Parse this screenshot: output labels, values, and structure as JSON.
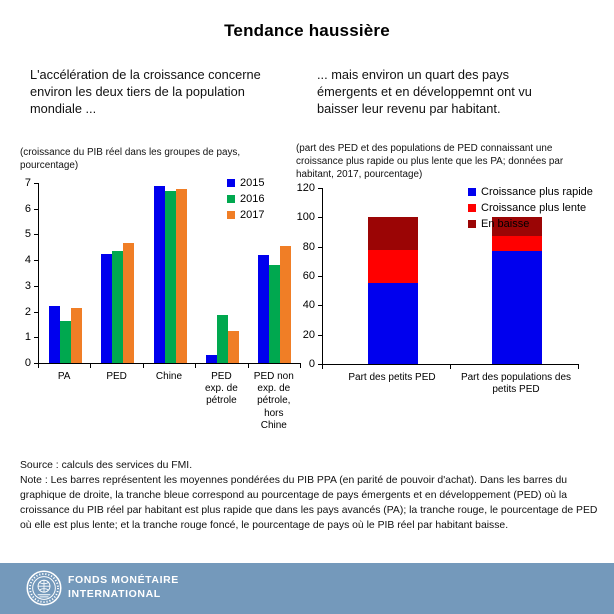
{
  "title": "Tendance haussière",
  "intro": {
    "left": "L'accélération de la croissance concerne environ les deux tiers de la population mondiale ...",
    "right": "... mais environ un quart des pays émergents et en développemnt ont vu baisser leur revenu par habitant."
  },
  "colors": {
    "blue": "#0000EE",
    "green": "#00A84F",
    "orange": "#F07E26",
    "red": "#FF0000",
    "dark_red": "#9B0505",
    "footer_band": "#7499BB"
  },
  "chart_data": [
    {
      "type": "bar",
      "title": "(croissance du PIB réel dans les groupes de pays, pourcentage)",
      "categories": [
        "PA",
        "PED",
        "Chine",
        "PED exp. de pétrole",
        "PED non exp. de pétrole, hors Chine"
      ],
      "tick_labels": [
        [
          "PA"
        ],
        [
          "PED"
        ],
        [
          "Chine"
        ],
        [
          "PED",
          "exp. de",
          "pétrole"
        ],
        [
          "PED non",
          "exp. de",
          "pétrole,",
          "hors",
          "Chine"
        ]
      ],
      "series": [
        {
          "name": "2015",
          "color": "#0000EE",
          "values": [
            2.2,
            4.25,
            6.9,
            0.3,
            4.2
          ]
        },
        {
          "name": "2016",
          "color": "#00A84F",
          "values": [
            1.65,
            4.35,
            6.7,
            1.85,
            3.8
          ]
        },
        {
          "name": "2017",
          "color": "#F07E26",
          "values": [
            2.15,
            4.65,
            6.75,
            1.25,
            4.55
          ]
        }
      ],
      "xlabel": "",
      "ylabel": "",
      "ylim": [
        0,
        7
      ],
      "ytick_step": 1,
      "grid": false,
      "legend_position": "top-right"
    },
    {
      "type": "stacked-bar",
      "title": "(part des PED et des populations de PED connaissant une croissance plus rapide ou plus lente que les PA; données par habitant, 2017, pourcentage)",
      "categories": [
        "Part des petits PED",
        "Part des populations des petits PED"
      ],
      "tick_labels": [
        [
          "Part des petits PED"
        ],
        [
          "Part des populations des",
          "petits PED"
        ]
      ],
      "series": [
        {
          "name": "Croissance plus rapide",
          "color": "#0000EE",
          "values": [
            55,
            77
          ]
        },
        {
          "name": "Croissance plus lente",
          "color": "#FF0000",
          "values": [
            22.5,
            10
          ]
        },
        {
          "name": "En baisse",
          "color": "#9B0505",
          "values": [
            22.5,
            13
          ]
        }
      ],
      "xlabel": "",
      "ylabel": "",
      "ylim": [
        0,
        120
      ],
      "ytick_step": 20,
      "grid": false,
      "legend_position": "top-right"
    }
  ],
  "source": "Source : calculs des services du FMI.",
  "note": "Note : Les barres représentent les moyennes pondérées du PIB PPA (en parité de pouvoir d'achat). Dans les barres du graphique de droite, la tranche bleue correspond au pourcentage de pays émergents et en développement (PED) où la croissance du PIB réel par habitant est plus rapide que dans les pays avancés (PA); la tranche rouge, le pourcentage de PED où elle est plus lente; et la tranche rouge foncé, le pourcentage de pays où le PIB réel par habitant baisse.",
  "footer": {
    "org_line1": "FONDS MONÉTAIRE",
    "org_line2": "INTERNATIONAL"
  }
}
